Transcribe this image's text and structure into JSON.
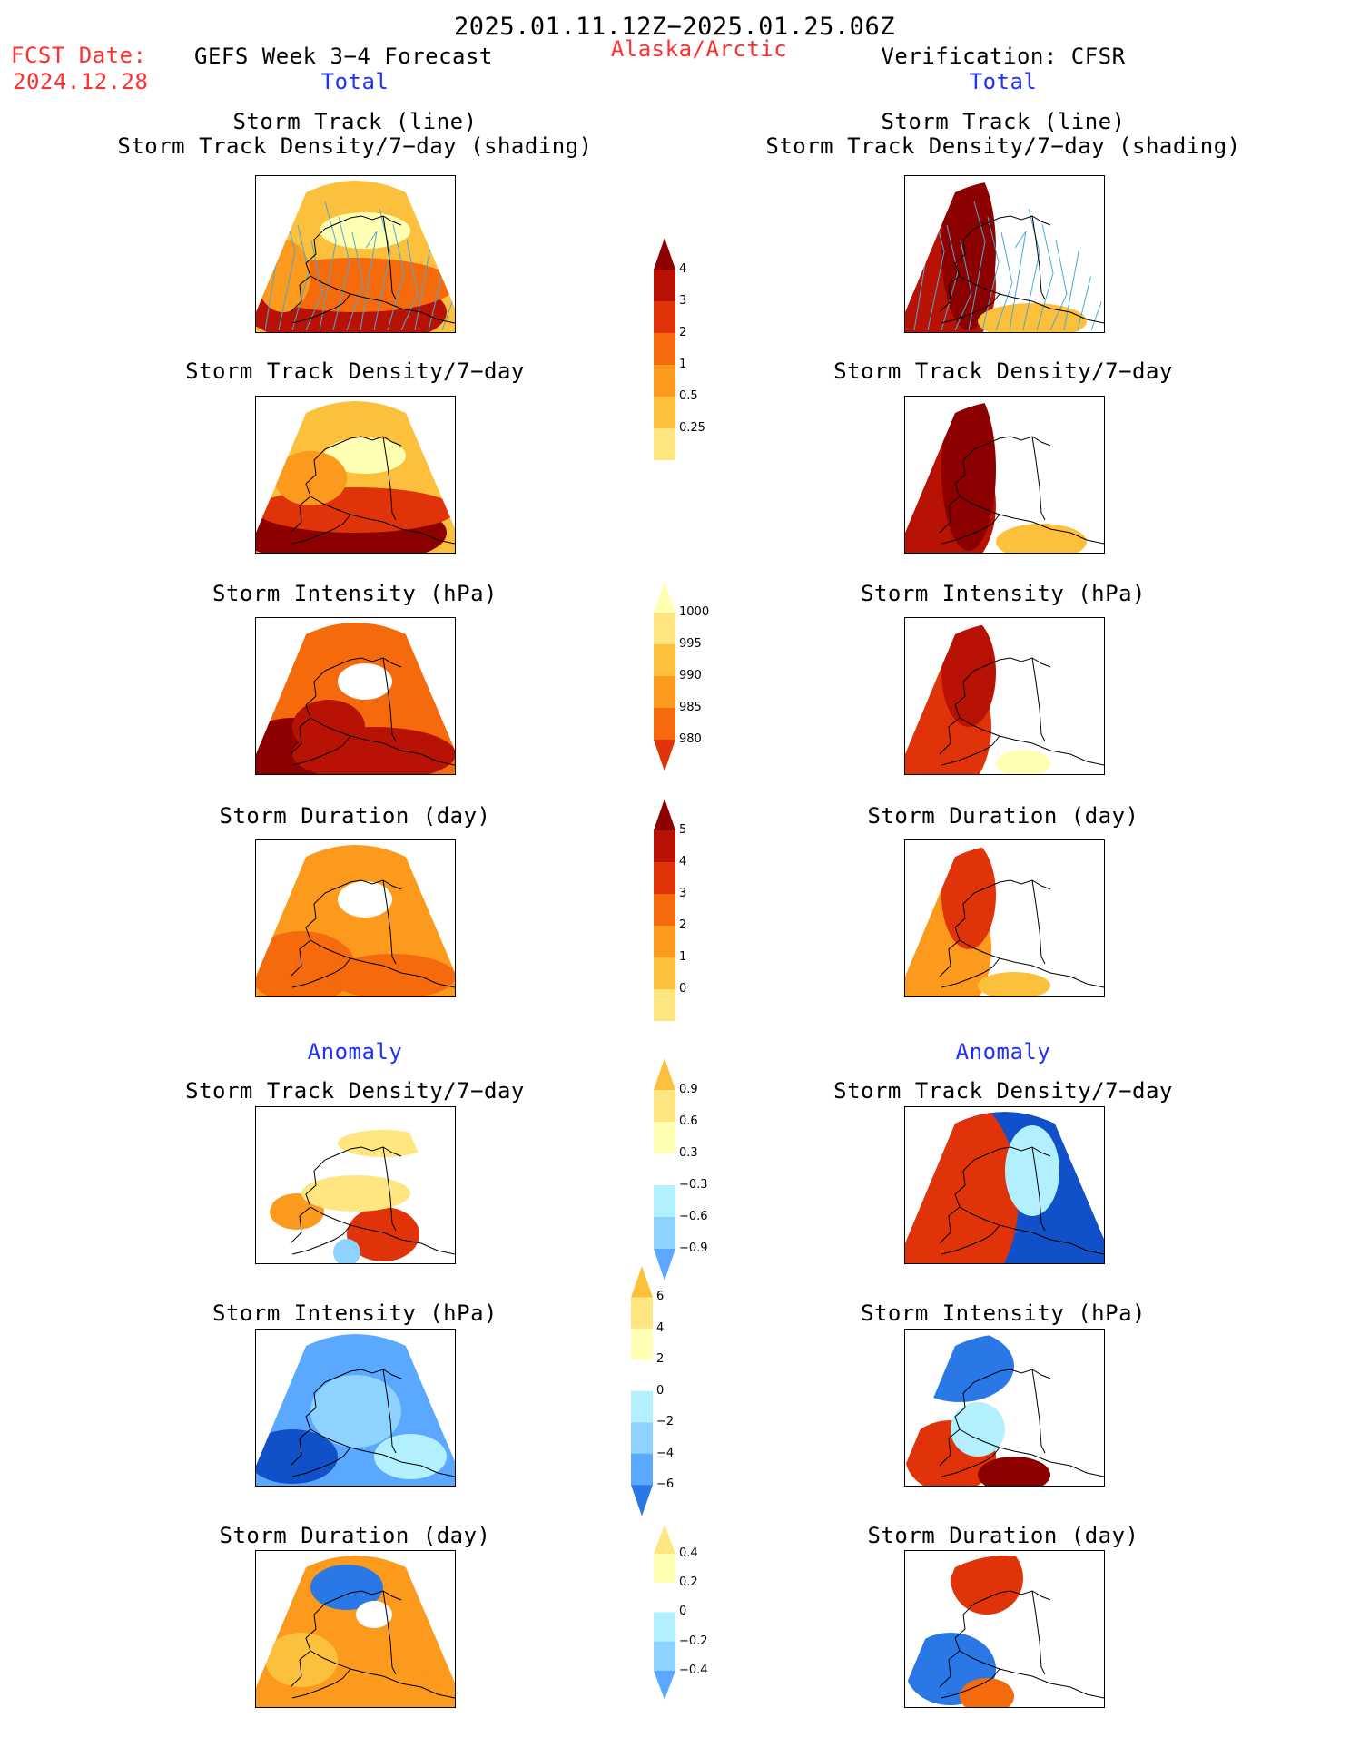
{
  "header": {
    "period": "2025.01.11.12Z−2025.01.25.06Z",
    "fcst_date_label": "FCST Date:",
    "fcst_date_value": "2024.12.28",
    "model_title": "GEFS Week 3−4 Forecast",
    "region": "Alaska/Arctic",
    "verification": "Verification: CFSR"
  },
  "sections": {
    "total_left": "Total",
    "total_right": "Total",
    "anomaly_left": "Anomaly",
    "anomaly_right": "Anomaly"
  },
  "panel_titles": {
    "track_line": "Storm Track (line)",
    "track_density_shading": "Storm Track Density/7−day (shading)",
    "track_density": "Storm Track Density/7−day",
    "intensity": "Storm Intensity (hPa)",
    "duration": "Storm Duration (day)"
  },
  "colorbars": {
    "density_total": [
      "4",
      "3",
      "2",
      "1",
      "0.5",
      "0.25"
    ],
    "intensity_total": [
      "1000",
      "995",
      "990",
      "985",
      "980"
    ],
    "duration_total": [
      "5",
      "4",
      "3",
      "2",
      "1",
      "0"
    ],
    "density_anom": [
      "0.9",
      "0.6",
      "0.3",
      "−0.3",
      "−0.6",
      "−0.9"
    ],
    "intensity_anom": [
      "6",
      "4",
      "2",
      "0",
      "−2",
      "−4",
      "−6"
    ],
    "duration_anom": [
      "0.4",
      "0.2",
      "0",
      "−0.2",
      "−0.4"
    ]
  },
  "colors": {
    "warm": [
      "#ffffb3",
      "#ffe680",
      "#fcc03c",
      "#fc9a1e",
      "#f46a0c",
      "#e0330a",
      "#b81204",
      "#8c0000"
    ],
    "cool": [
      "#b3f0ff",
      "#8ed2ff",
      "#5aa8ff",
      "#2a78e6",
      "#1050c8"
    ],
    "track_line": "#4aa8d8"
  }
}
